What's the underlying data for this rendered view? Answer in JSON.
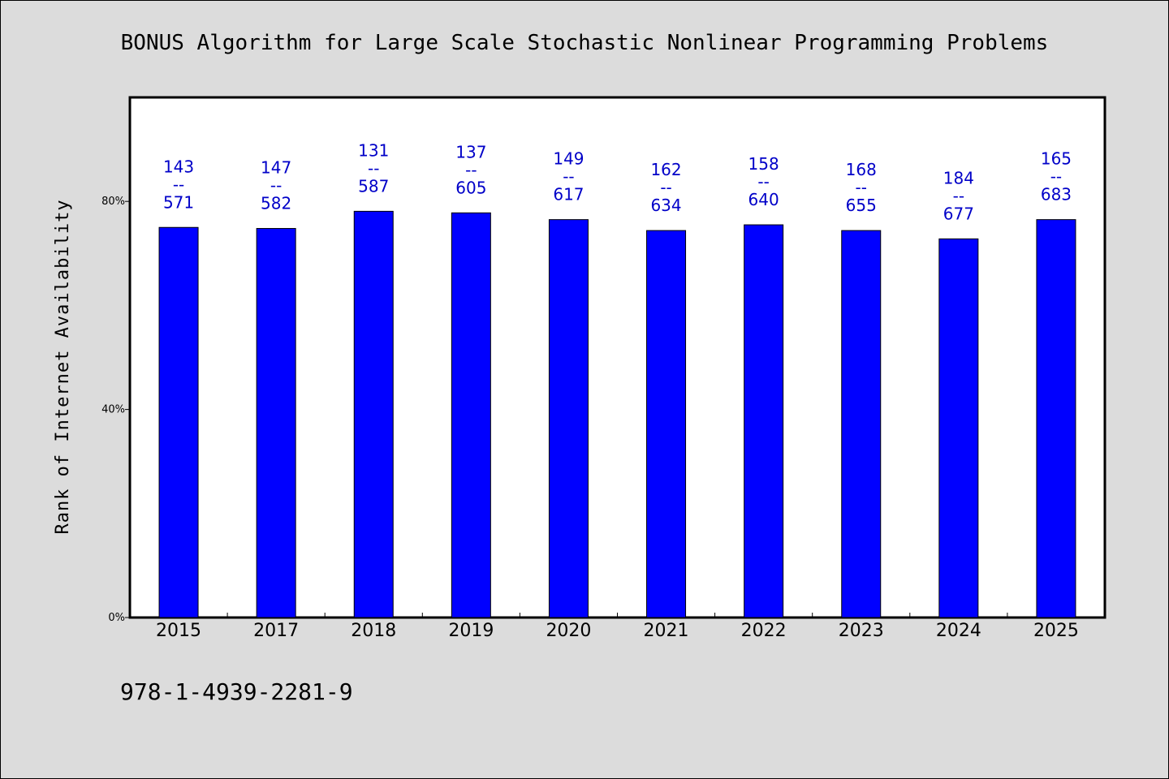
{
  "chart_data": {
    "type": "bar",
    "title": "BONUS Algorithm for Large Scale Stochastic Nonlinear Programming Problems",
    "xlabel": "",
    "ylabel": "Rank of Internet Availability",
    "categories": [
      "2015",
      "2017",
      "2018",
      "2019",
      "2020",
      "2021",
      "2022",
      "2023",
      "2024",
      "2025"
    ],
    "values": [
      75.0,
      74.8,
      78.1,
      77.8,
      76.5,
      74.4,
      75.5,
      74.4,
      72.8,
      76.5
    ],
    "data_labels": [
      [
        "143",
        "--",
        "571"
      ],
      [
        "147",
        "--",
        "582"
      ],
      [
        "131",
        "--",
        "587"
      ],
      [
        "137",
        "--",
        "605"
      ],
      [
        "149",
        "--",
        "617"
      ],
      [
        "162",
        "--",
        "634"
      ],
      [
        "158",
        "--",
        "640"
      ],
      [
        "168",
        "--",
        "655"
      ],
      [
        "184",
        "--",
        "677"
      ],
      [
        "165",
        "--",
        "683"
      ]
    ],
    "ylim": [
      0,
      100
    ],
    "yticks": [
      0,
      40,
      80
    ],
    "ytick_labels": [
      "0%",
      "40%",
      "80%"
    ],
    "grid": false,
    "legend": "none",
    "bar_color": "#0000ff",
    "label_color": "#0000c8"
  },
  "footer": {
    "isbn": "978-1-4939-2281-9"
  }
}
